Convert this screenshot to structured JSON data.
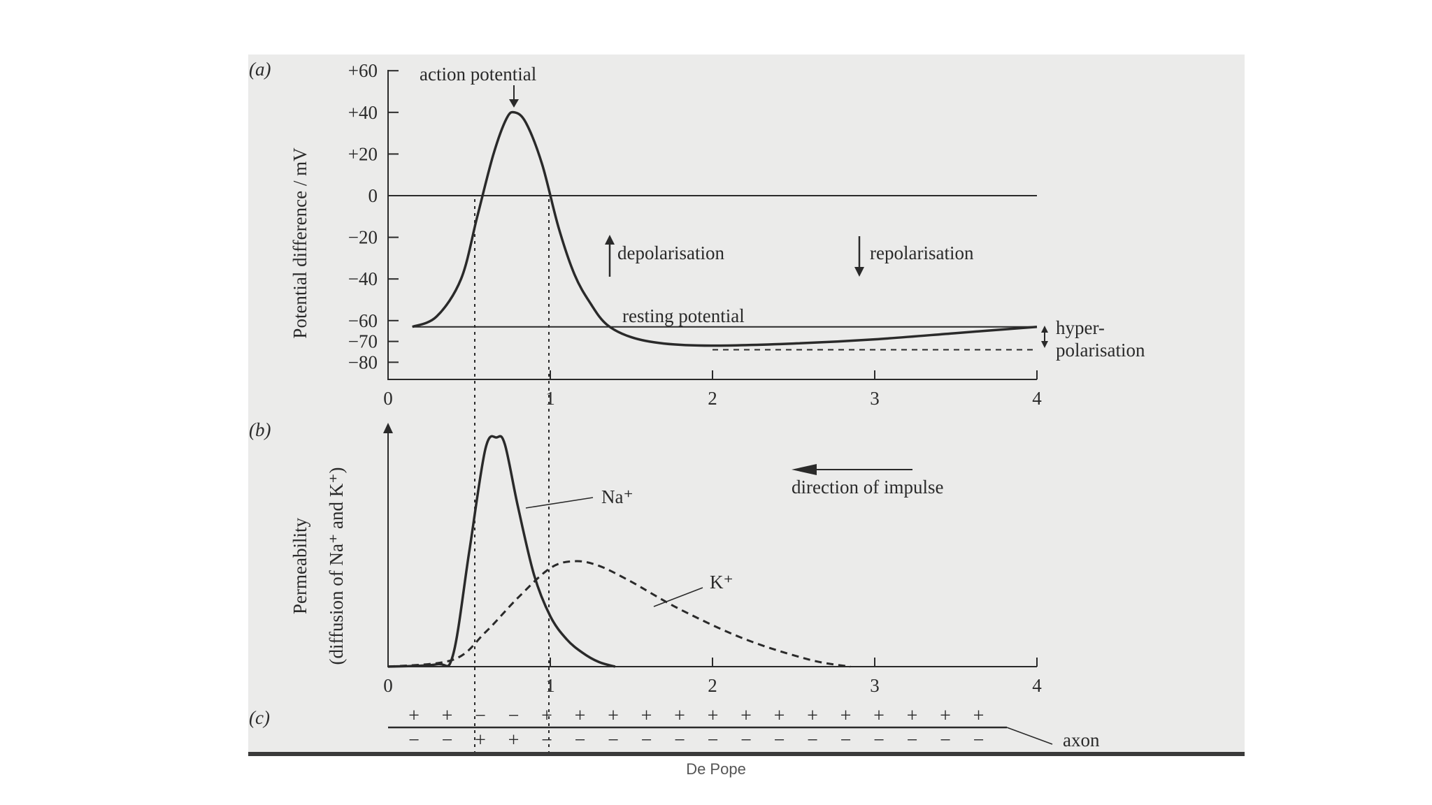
{
  "caption": "De Pope",
  "colors": {
    "photo_bg": "#ebebea",
    "ink": "#2a2a2a",
    "frame_bottom": "#3a3a3a"
  },
  "chart_data": [
    {
      "type": "line",
      "panel_label": "(a)",
      "ylabel": "Potential difference / mV",
      "y_ticks": [
        "+60",
        "+40",
        "+20",
        "0",
        "−20",
        "−40",
        "−60",
        "−70",
        "−80"
      ],
      "y_tick_values": [
        60,
        40,
        20,
        0,
        -20,
        -40,
        -60,
        -70,
        -80
      ],
      "x_ticks": [
        "0",
        "1",
        "2",
        "3",
        "4"
      ],
      "x_tick_values": [
        0,
        1,
        2,
        3,
        4
      ],
      "xlim": [
        0,
        4
      ],
      "ylim": [
        -89,
        61
      ],
      "series": [
        {
          "style": "solid",
          "x": [
            0.15,
            0.3,
            0.45,
            0.55,
            0.65,
            0.73,
            0.78,
            0.85,
            0.95,
            1.05,
            1.15,
            1.25,
            1.35,
            1.5,
            1.7,
            2.0,
            2.5,
            3.0,
            3.5,
            4.0
          ],
          "y": [
            -63,
            -58,
            -40,
            -10,
            20,
            37,
            40,
            35,
            15,
            -15,
            -38,
            -52,
            -62,
            -68,
            -71,
            -72,
            -71,
            -69,
            -66,
            -63
          ]
        }
      ],
      "reference_lines": [
        {
          "y": 0,
          "style": "solid",
          "x_range": [
            0,
            4
          ]
        },
        {
          "y": -63,
          "style": "solid",
          "x_range": [
            0.15,
            4
          ]
        },
        {
          "y": -74,
          "style": "dashed",
          "x_range": [
            2.0,
            4
          ]
        }
      ],
      "annotations": {
        "action_potential": "action potential",
        "depolarisation": "depolarisation",
        "repolarisation": "repolarisation",
        "resting_potential": "resting potential",
        "hyper_line1": "hyper-",
        "hyper_line2": "polarisation"
      }
    },
    {
      "type": "line",
      "panel_label": "(b)",
      "ylabel_line1": "Permeability",
      "ylabel_line2": "(diffusion of Na⁺ and K⁺)",
      "x_ticks": [
        "0",
        "1",
        "2",
        "3",
        "4"
      ],
      "x_tick_values": [
        0,
        1,
        2,
        3,
        4
      ],
      "xlim": [
        0,
        4
      ],
      "ylim": [
        0,
        1.1
      ],
      "series": [
        {
          "name": "Na⁺",
          "style": "solid",
          "x": [
            0.0,
            0.3,
            0.4,
            0.5,
            0.6,
            0.67,
            0.72,
            0.8,
            0.9,
            1.0,
            1.1,
            1.2,
            1.3,
            1.4
          ],
          "y": [
            0.0,
            0.01,
            0.05,
            0.5,
            0.95,
            1.0,
            0.97,
            0.7,
            0.4,
            0.22,
            0.12,
            0.06,
            0.02,
            0.0
          ]
        },
        {
          "name": "K⁺",
          "style": "dashed",
          "x": [
            0.0,
            0.4,
            0.6,
            0.8,
            1.0,
            1.15,
            1.3,
            1.5,
            1.8,
            2.2,
            2.6,
            2.85
          ],
          "y": [
            0.0,
            0.03,
            0.15,
            0.3,
            0.43,
            0.46,
            0.44,
            0.37,
            0.25,
            0.12,
            0.03,
            0.0
          ]
        }
      ],
      "annotations": {
        "direction_of_impulse": "direction of impulse",
        "na_label": "Na⁺",
        "k_label": "K⁺"
      }
    },
    {
      "type": "diagram",
      "panel_label": "(c)",
      "top_signs": [
        "+",
        "+",
        "−",
        "−",
        "+",
        "+",
        "+",
        "+",
        "+",
        "+",
        "+",
        "+",
        "+",
        "+",
        "+",
        "+",
        "+",
        "+"
      ],
      "bottom_signs": [
        "−",
        "−",
        "+",
        "+",
        "−",
        "−",
        "−",
        "−",
        "−",
        "−",
        "−",
        "−",
        "−",
        "−",
        "−",
        "−",
        "−",
        "−"
      ],
      "axon_label": "axon"
    }
  ]
}
